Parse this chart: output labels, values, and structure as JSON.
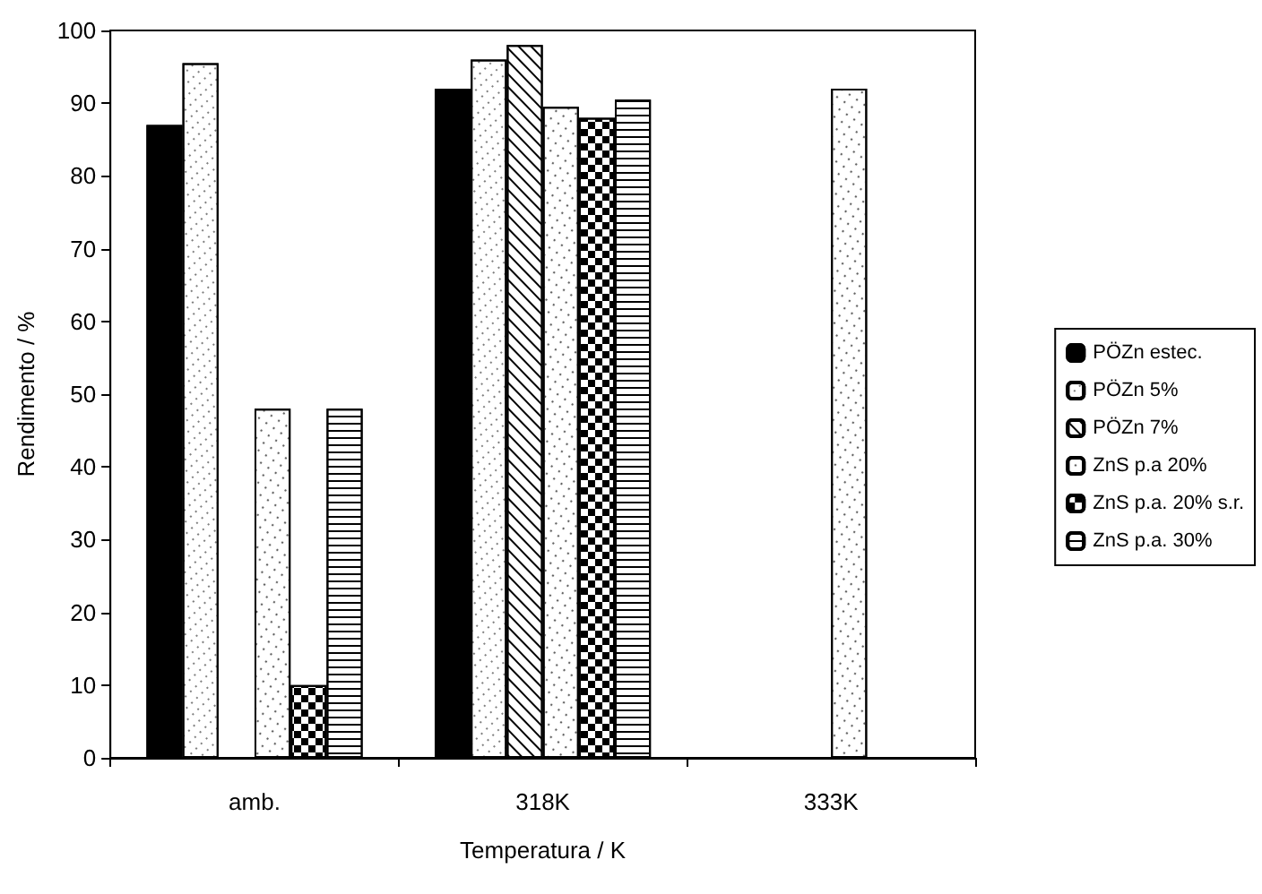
{
  "chart_data": {
    "type": "bar",
    "xlabel": "Temperatura / K",
    "ylabel": "Rendimento / %",
    "categories": [
      "amb.",
      "318K",
      "333K"
    ],
    "series": [
      {
        "name": "PÖZn estec.",
        "color": "#000000",
        "values": [
          87,
          92,
          null
        ]
      },
      {
        "name": "PÖZn 5%",
        "color": "#ffffff",
        "values": [
          95.5,
          96,
          null
        ]
      },
      {
        "name": "PÖZn 7%",
        "color": "#ffffff",
        "values": [
          null,
          98,
          null
        ]
      },
      {
        "name": "ZnS p.a 20%",
        "color": "#ffffff",
        "values": [
          48,
          89.5,
          92
        ]
      },
      {
        "name": "ZnS p.a. 20% s.r.",
        "color": "#ffffff",
        "values": [
          10,
          88,
          null
        ]
      },
      {
        "name": "ZnS p.a. 30%",
        "color": "#ffffff",
        "values": [
          48,
          90.5,
          null
        ]
      }
    ],
    "ylim": [
      0,
      100
    ],
    "yticks": [
      0,
      10,
      20,
      30,
      40,
      50,
      60,
      70,
      80,
      90,
      100
    ],
    "grid": false,
    "legend": "right"
  }
}
